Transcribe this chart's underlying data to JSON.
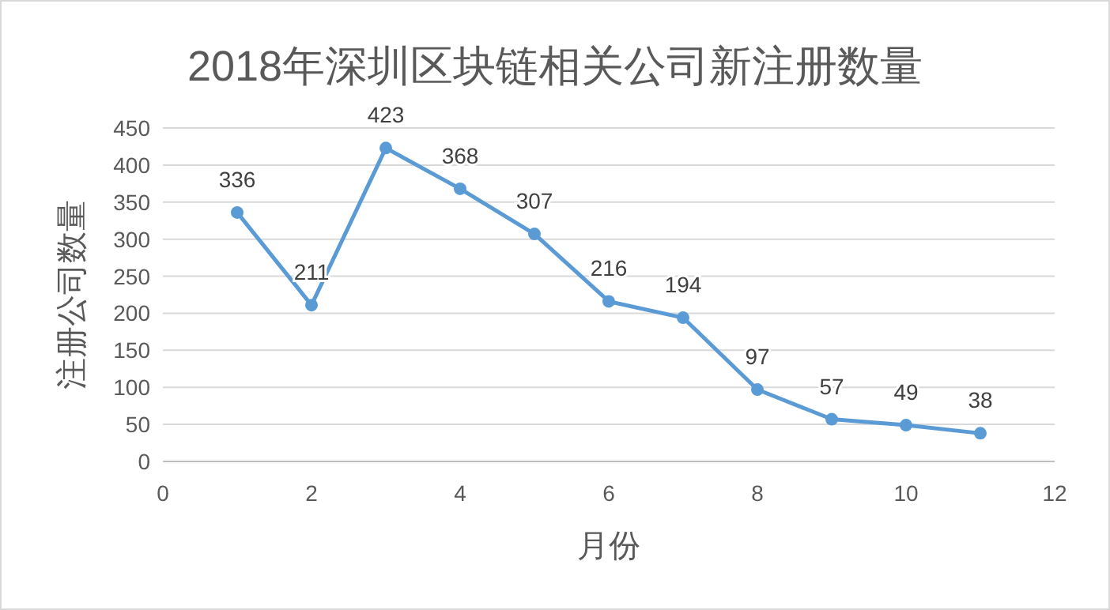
{
  "chart_data": {
    "type": "line",
    "title": "2018年深圳区块链相关公司新注册数量",
    "xlabel": "月份",
    "ylabel": "注册公司数量",
    "x": [
      1,
      2,
      3,
      4,
      5,
      6,
      7,
      8,
      9,
      10,
      11
    ],
    "series": [
      {
        "color": "#5b9bd5",
        "values": [
          336,
          211,
          423,
          368,
          307,
          216,
          194,
          97,
          57,
          49,
          38
        ]
      }
    ],
    "xlim": [
      0,
      12
    ],
    "xticks": [
      0,
      2,
      4,
      6,
      8,
      10,
      12
    ],
    "ylim": [
      0,
      450
    ],
    "yticks": [
      0,
      50,
      100,
      150,
      200,
      250,
      300,
      350,
      400,
      450
    ],
    "grid": "y",
    "marker": "circle",
    "line_style": "solid",
    "data_labels": true
  }
}
